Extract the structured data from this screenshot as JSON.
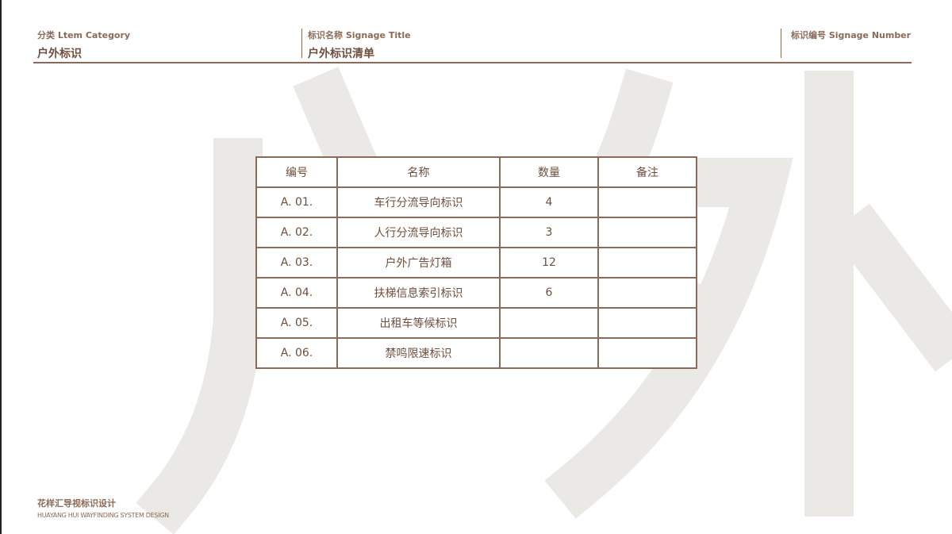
{
  "header": {
    "category": {
      "label": "分类  Ltem Category",
      "value": "户外标识"
    },
    "title": {
      "label": "标识名称  Signage Title",
      "value": "户外标识清单"
    },
    "number": {
      "label": "标识编号 Signage Number",
      "value": ""
    }
  },
  "watermark": "户外",
  "table": {
    "columns": [
      "编号",
      "名称",
      "数量",
      "备注"
    ],
    "rows": [
      [
        "A. 01.",
        "车行分流导向标识",
        "4",
        ""
      ],
      [
        "A. 02.",
        "人行分流导向标识",
        "3",
        ""
      ],
      [
        "A. 03.",
        "户外广告灯箱",
        "12",
        ""
      ],
      [
        "A. 04.",
        "扶梯信息索引标识",
        "6",
        ""
      ],
      [
        "A. 05.",
        "出租车等候标识",
        "",
        ""
      ],
      [
        "A. 06.",
        "禁鸣限速标识",
        "",
        ""
      ]
    ]
  },
  "footer": {
    "cn": "花样汇导视标识设计",
    "en": "HUAYANG HUI WAYFINDING SYSTEM DESIGN"
  },
  "colors": {
    "accent": "#8a6a58",
    "text": "#6e4e3e",
    "watermark": "#ebe9e6"
  }
}
